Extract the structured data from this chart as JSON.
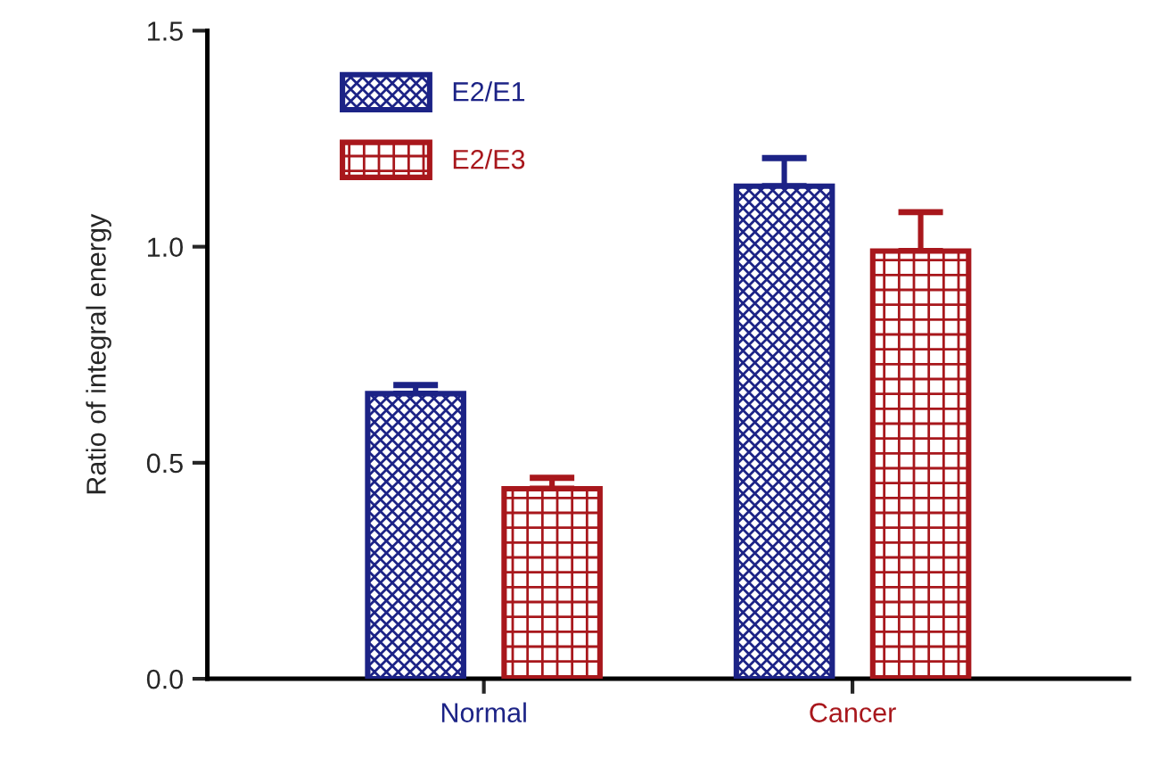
{
  "chart_data": {
    "type": "bar",
    "ylabel": "Ratio of integral energy",
    "categories": [
      "Normal",
      "Cancer"
    ],
    "series": [
      {
        "name": "E2/E1",
        "color": "#1c2386",
        "values": [
          0.66,
          1.14
        ],
        "errors": [
          [
            0.66,
            0.68
          ],
          [
            1.14,
            1.205
          ]
        ]
      },
      {
        "name": "E2/E3",
        "color": "#a8171c",
        "values": [
          0.44,
          0.99
        ],
        "errors": [
          [
            0.44,
            0.465
          ],
          [
            0.99,
            1.08
          ]
        ]
      }
    ],
    "ylim": [
      0,
      1.5
    ],
    "yticks": [
      {
        "value": 0,
        "label": "0.0"
      },
      {
        "value": 0.5,
        "label": "0.5"
      },
      {
        "value": 1,
        "label": "1.0"
      },
      {
        "value": 1.5,
        "label": "1.5"
      }
    ],
    "grid": false,
    "legend": "top left"
  }
}
